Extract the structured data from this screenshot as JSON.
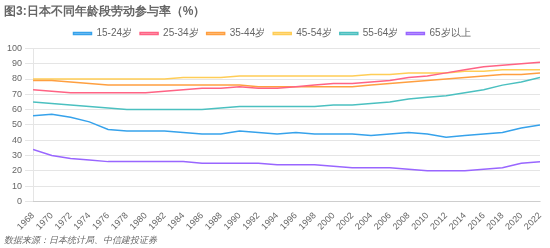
{
  "chart_data": {
    "type": "line",
    "title": "图3:日本不同年龄段劳动参与率（%）",
    "annotations": [
      "数据来源：日本统计局、中信建投证券"
    ],
    "x": [
      1968,
      1970,
      1972,
      1974,
      1976,
      1978,
      1980,
      1982,
      1984,
      1986,
      1988,
      1990,
      1992,
      1994,
      1996,
      1998,
      2000,
      2002,
      2004,
      2006,
      2008,
      2010,
      2012,
      2014,
      2016,
      2018,
      2020,
      2022
    ],
    "series": [
      {
        "name": "15-24岁",
        "values": [
          56,
          57,
          55,
          52,
          47,
          46,
          46,
          46,
          45,
          44,
          44,
          46,
          45,
          44,
          45,
          44,
          44,
          44,
          43,
          44,
          45,
          44,
          42,
          43,
          44,
          45,
          48,
          50
        ]
      },
      {
        "name": "25-34岁",
        "values": [
          73,
          72,
          71,
          71,
          71,
          71,
          71,
          72,
          73,
          74,
          74,
          75,
          74,
          74,
          75,
          76,
          77,
          77,
          78,
          79,
          81,
          82,
          84,
          86,
          88,
          89,
          90,
          91
        ]
      },
      {
        "name": "35-44岁",
        "values": [
          79,
          79,
          78,
          77,
          76,
          76,
          76,
          76,
          76,
          76,
          76,
          76,
          75,
          75,
          75,
          75,
          75,
          75,
          76,
          77,
          78,
          79,
          80,
          81,
          82,
          83,
          83,
          84
        ]
      },
      {
        "name": "45-54岁",
        "values": [
          80,
          80,
          80,
          80,
          80,
          80,
          80,
          80,
          81,
          81,
          81,
          82,
          82,
          82,
          82,
          82,
          82,
          82,
          83,
          83,
          84,
          84,
          84,
          85,
          85,
          86,
          86,
          86
        ]
      },
      {
        "name": "55-64岁",
        "values": [
          65,
          64,
          63,
          62,
          61,
          60,
          60,
          60,
          60,
          60,
          61,
          62,
          62,
          62,
          62,
          62,
          63,
          63,
          64,
          65,
          67,
          68,
          69,
          71,
          73,
          76,
          78,
          81
        ]
      },
      {
        "name": "65岁以上",
        "values": [
          34,
          30,
          28,
          27,
          26,
          26,
          26,
          26,
          26,
          25,
          25,
          25,
          25,
          24,
          24,
          24,
          23,
          22,
          22,
          22,
          21,
          20,
          20,
          20,
          21,
          22,
          25,
          26
        ]
      }
    ],
    "xlim": [
      1968,
      2022
    ],
    "xticks": [
      1968,
      1970,
      1972,
      1974,
      1976,
      1978,
      1980,
      1982,
      1984,
      1986,
      1988,
      1990,
      1992,
      1994,
      1996,
      1998,
      2000,
      2002,
      2004,
      2006,
      2008,
      2010,
      2012,
      2014,
      2016,
      2018,
      2020,
      2022
    ],
    "ylim": [
      0,
      100
    ],
    "yticks": [
      0,
      10,
      20,
      30,
      40,
      50,
      60,
      70,
      80,
      90,
      100
    ],
    "grid": "y",
    "legend": "top"
  }
}
